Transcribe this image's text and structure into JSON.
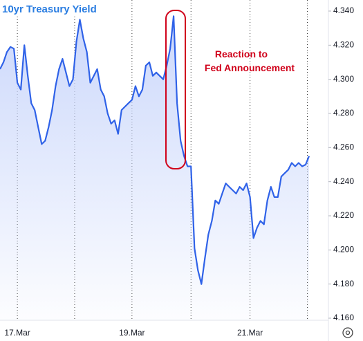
{
  "chart_data": {
    "type": "line",
    "title": "10yr Treasury Yield",
    "annotation": [
      "Reaction to",
      "Fed Announcement"
    ],
    "categories": [
      null,
      null,
      null,
      null,
      null,
      "17.Mar",
      null,
      null,
      null,
      null,
      null,
      null,
      null,
      null,
      null,
      null,
      null,
      null,
      null,
      null,
      null,
      null,
      null,
      null,
      null,
      null,
      null,
      null,
      null,
      null,
      null,
      null,
      null,
      null,
      null,
      null,
      null,
      null,
      "19.Mar",
      null,
      null,
      null,
      null,
      null,
      null,
      null,
      null,
      null,
      null,
      null,
      null,
      null,
      null,
      null,
      null,
      null,
      null,
      null,
      null,
      null,
      null,
      null,
      null,
      null,
      null,
      null,
      null,
      null,
      null,
      null,
      null,
      null,
      "21.Mar",
      null,
      null,
      null,
      null,
      null,
      null,
      null,
      null,
      null,
      null,
      null,
      null,
      null,
      null,
      null,
      null,
      null
    ],
    "series": [
      {
        "name": "10yr Treasury Yield",
        "color": "#2f62e8",
        "values": [
          4.306,
          4.31,
          4.316,
          4.319,
          4.318,
          4.298,
          4.294,
          4.32,
          4.302,
          4.286,
          4.282,
          4.272,
          4.262,
          4.264,
          4.272,
          4.282,
          4.296,
          4.306,
          4.312,
          4.304,
          4.296,
          4.3,
          4.322,
          4.335,
          4.324,
          4.316,
          4.298,
          4.302,
          4.306,
          4.294,
          4.29,
          4.28,
          4.274,
          4.276,
          4.268,
          4.282,
          4.284,
          4.286,
          4.288,
          4.296,
          4.29,
          4.294,
          4.308,
          4.31,
          4.302,
          4.304,
          4.302,
          4.3,
          4.308,
          4.318,
          4.337,
          4.286,
          4.264,
          4.255,
          4.249,
          4.249,
          4.201,
          4.188,
          4.18,
          4.195,
          4.209,
          4.217,
          4.229,
          4.227,
          4.233,
          4.239,
          4.237,
          4.235,
          4.233,
          4.237,
          4.235,
          4.239,
          4.231,
          4.207,
          4.213,
          4.217,
          4.215,
          4.229,
          4.237,
          4.231,
          4.231,
          4.243,
          4.245,
          4.247,
          4.251,
          4.249,
          4.251,
          4.249,
          4.25,
          4.255
        ]
      }
    ],
    "ylim": [
      4.16,
      4.34
    ],
    "yticks": [
      {
        "value": 4.16,
        "label": "4.160"
      },
      {
        "value": 4.18,
        "label": "4.180"
      },
      {
        "value": 4.2,
        "label": "4.200"
      },
      {
        "value": 4.22,
        "label": "4.220"
      },
      {
        "value": 4.24,
        "label": "4.240"
      },
      {
        "value": 4.26,
        "label": "4.260"
      },
      {
        "value": 4.28,
        "label": "4.280"
      },
      {
        "value": 4.3,
        "label": "4.300"
      },
      {
        "value": 4.32,
        "label": "4.320"
      },
      {
        "value": 4.34,
        "label": "4.340"
      }
    ]
  }
}
